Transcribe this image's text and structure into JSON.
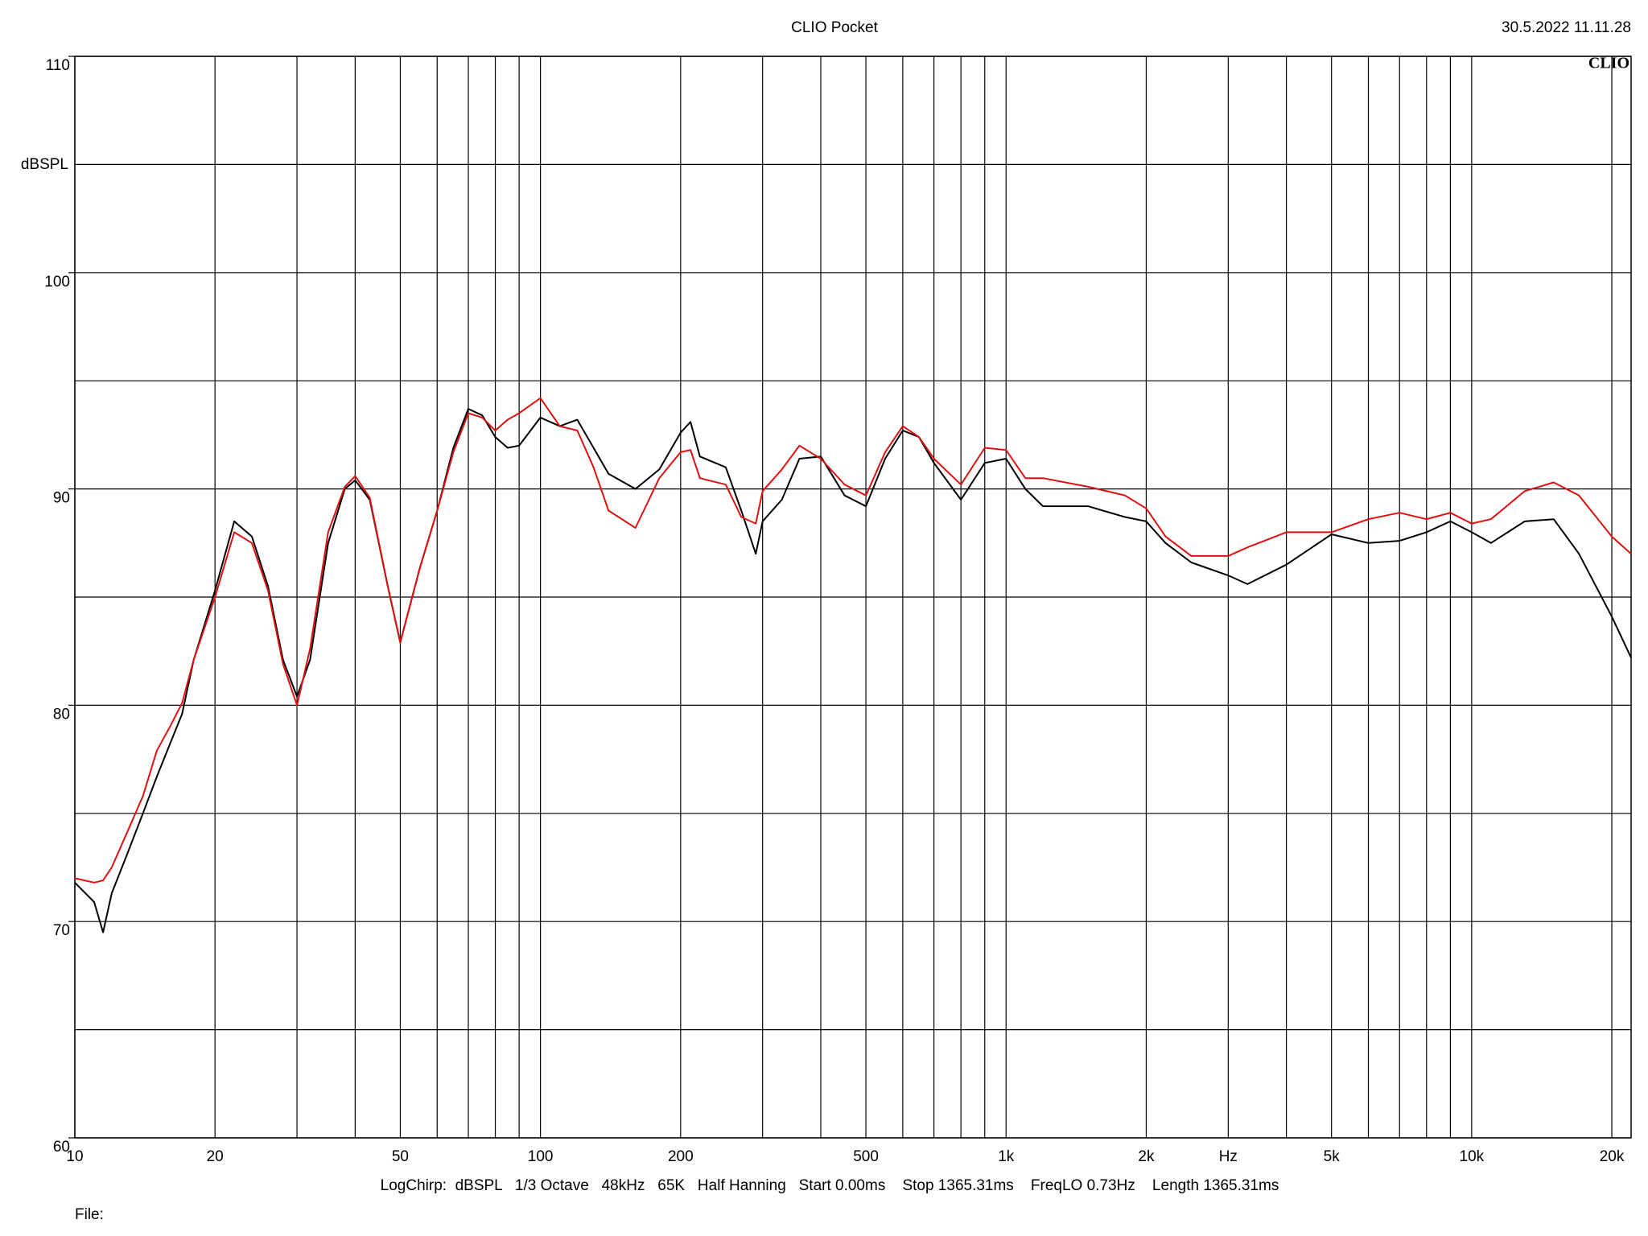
{
  "chart_data": {
    "type": "line",
    "title": "CLIO Pocket",
    "timestamp": "30.5.2022 11.11.28",
    "logo": "CLIO",
    "y_label": "dBSPL",
    "footer": "LogChirp:  dBSPL   1/3 Octave   48kHz   65K   Half Hanning   Start 0.00ms    Stop 1365.31ms    FreqLO 0.73Hz    Length 1365.31ms",
    "file_label": "File:",
    "xscale": "log",
    "grid": true,
    "xlim": [
      10,
      22000
    ],
    "ylim": [
      60,
      110
    ],
    "xticks": [
      10,
      20,
      50,
      100,
      200,
      500,
      {
        "value": 1000,
        "label": "1k"
      },
      {
        "value": 2000,
        "label": "2k"
      },
      {
        "value": 3000,
        "label": "Hz"
      },
      {
        "value": 5000,
        "label": "5k"
      },
      {
        "value": 10000,
        "label": "10k"
      },
      {
        "value": 20000,
        "label": "20k"
      }
    ],
    "xminor": [
      30,
      40,
      60,
      70,
      80,
      90,
      300,
      400,
      600,
      700,
      800,
      900,
      4000,
      6000,
      7000,
      8000,
      9000
    ],
    "yticks": [
      60,
      70,
      80,
      90,
      100,
      110
    ],
    "yminor": [
      65,
      75,
      85,
      95,
      105
    ],
    "x": [
      10,
      11,
      11.5,
      12,
      13,
      14,
      15,
      16,
      17,
      18,
      20,
      22,
      24,
      26,
      28,
      30,
      32,
      35,
      38,
      40,
      43,
      47,
      50,
      55,
      60,
      65,
      70,
      75,
      80,
      85,
      90,
      100,
      110,
      120,
      130,
      140,
      160,
      180,
      200,
      210,
      220,
      250,
      270,
      290,
      300,
      330,
      360,
      400,
      450,
      500,
      550,
      600,
      650,
      700,
      800,
      900,
      1000,
      1100,
      1200,
      1500,
      1800,
      2000,
      2200,
      2500,
      3000,
      3300,
      4000,
      5000,
      6000,
      7000,
      8000,
      9000,
      10000,
      11000,
      13000,
      15000,
      17000,
      20000,
      22000
    ],
    "series": [
      {
        "color": "#000000",
        "values": [
          71.8,
          70.9,
          69.5,
          71.3,
          73.2,
          75.0,
          76.7,
          78.2,
          79.6,
          82.1,
          85.3,
          88.5,
          87.8,
          85.5,
          82.1,
          80.4,
          82.1,
          87.5,
          90.0,
          90.4,
          89.5,
          85.5,
          82.9,
          86.3,
          89.0,
          91.9,
          93.7,
          93.4,
          92.4,
          91.9,
          92.0,
          93.3,
          92.9,
          93.2,
          91.9,
          90.7,
          90.0,
          90.9,
          92.6,
          93.1,
          91.5,
          91.0,
          89.0,
          87.0,
          88.5,
          89.5,
          91.4,
          91.5,
          89.7,
          89.2,
          91.4,
          92.7,
          92.4,
          91.2,
          89.5,
          91.2,
          91.4,
          90.0,
          89.2,
          89.2,
          88.7,
          88.5,
          87.5,
          86.6,
          86.0,
          85.6,
          86.5,
          87.9,
          87.5,
          87.6,
          88.0,
          88.5,
          88.0,
          87.5,
          88.5,
          88.6,
          87.0,
          84.1,
          82.2
        ]
      },
      {
        "color": "#e01010",
        "values": [
          72.0,
          71.8,
          71.9,
          72.5,
          74.2,
          75.8,
          77.9,
          79.0,
          80.1,
          82.1,
          85.0,
          88.0,
          87.5,
          85.3,
          81.9,
          80.0,
          82.6,
          88.0,
          90.1,
          90.6,
          89.6,
          85.5,
          82.9,
          86.3,
          89.0,
          91.7,
          93.5,
          93.3,
          92.7,
          93.2,
          93.5,
          94.2,
          92.9,
          92.7,
          91.0,
          89.0,
          88.2,
          90.5,
          91.7,
          91.8,
          90.5,
          90.2,
          88.7,
          88.4,
          89.9,
          90.9,
          92.0,
          91.4,
          90.2,
          89.7,
          91.7,
          92.9,
          92.4,
          91.4,
          90.2,
          91.9,
          91.8,
          90.5,
          90.5,
          90.1,
          89.7,
          89.1,
          87.8,
          86.9,
          86.9,
          87.3,
          88.0,
          88.0,
          88.6,
          88.9,
          88.6,
          88.9,
          88.4,
          88.6,
          89.9,
          90.3,
          89.7,
          87.8,
          87.0
        ]
      }
    ]
  }
}
